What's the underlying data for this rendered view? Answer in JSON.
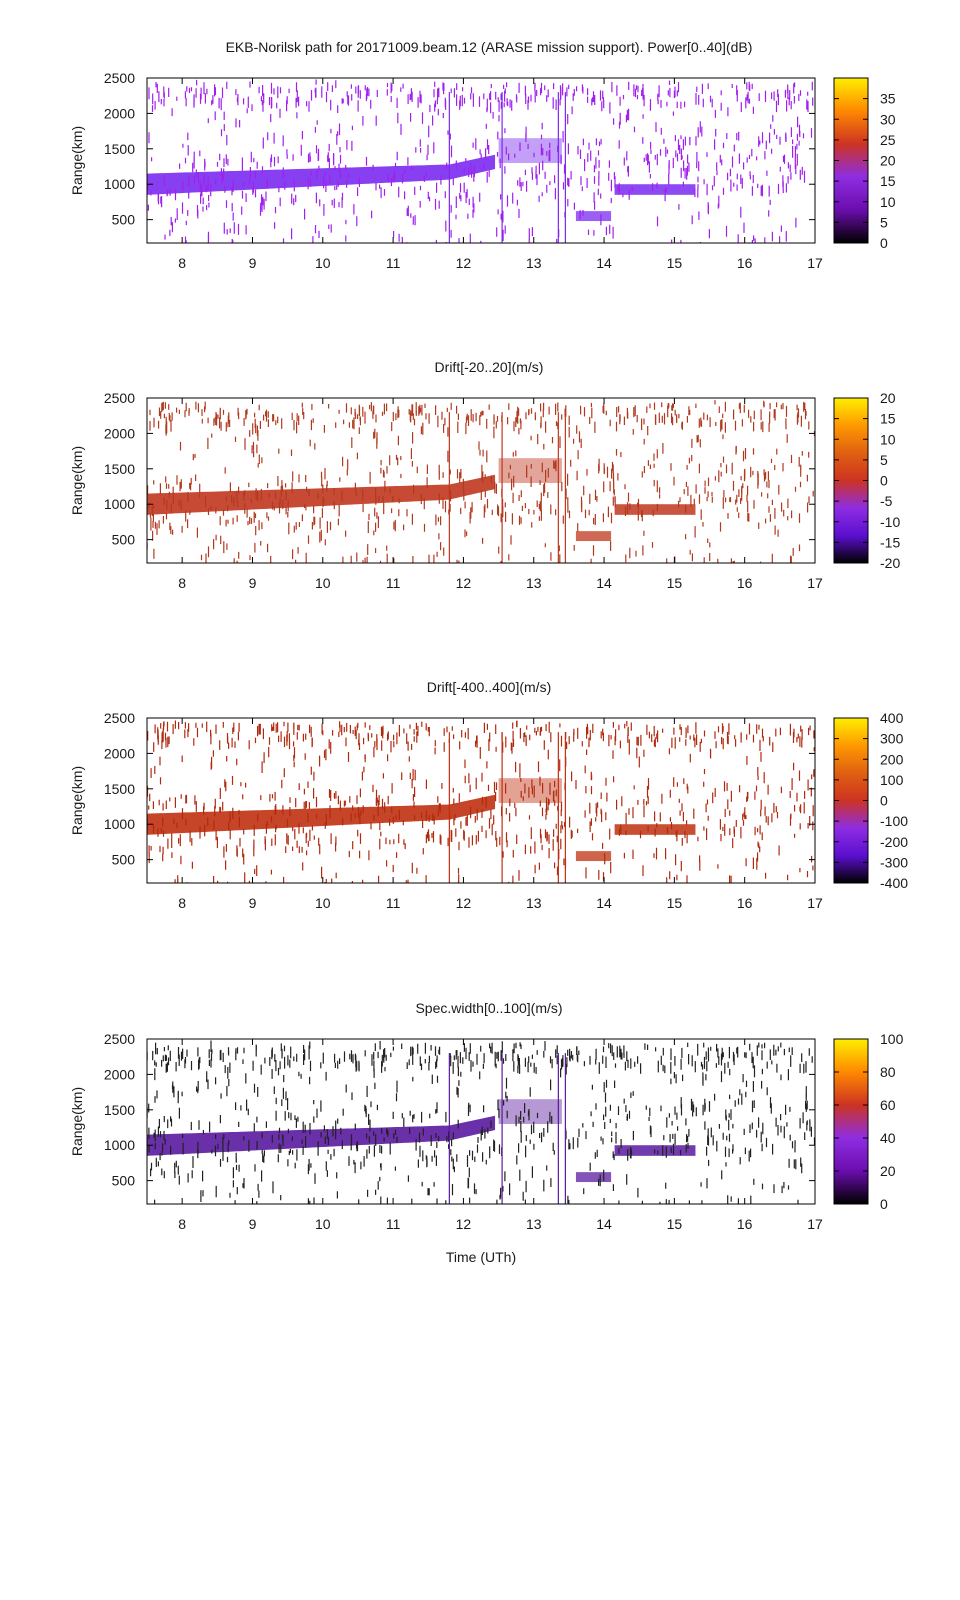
{
  "figure": {
    "xlabel": "Time (UTh)"
  },
  "chart_data": [
    {
      "type": "heatmap",
      "title": "EKB-Norilsk path for 20171009.beam.12 (ARASE mission support). Power[0..40](dB)",
      "ylabel": "Range(km)",
      "xlabel": "",
      "xlim": [
        7.5,
        17
      ],
      "ylim": [
        170,
        2500
      ],
      "x_ticks": [
        "8",
        "9",
        "10",
        "11",
        "12",
        "13",
        "14",
        "15",
        "16",
        "17"
      ],
      "y_ticks": [
        "500",
        "1000",
        "1500",
        "2000",
        "2500"
      ],
      "colorbar": {
        "range": [
          0,
          40
        ],
        "ticks": [
          "0",
          "5",
          "10",
          "15",
          "20",
          "25",
          "30",
          "35"
        ],
        "colors": [
          "#000000",
          "#6a0dad",
          "#8e2de2",
          "#cc3322",
          "#ff8800",
          "#ffee00"
        ]
      },
      "scatter_color": "#a020f0",
      "band_color": "#7a2af0",
      "grid": false
    },
    {
      "type": "heatmap",
      "title": "Drift[-20..20](m/s)",
      "ylabel": "Range(km)",
      "xlabel": "",
      "xlim": [
        7.5,
        17
      ],
      "ylim": [
        170,
        2500
      ],
      "x_ticks": [
        "8",
        "9",
        "10",
        "11",
        "12",
        "13",
        "14",
        "15",
        "16",
        "17"
      ],
      "y_ticks": [
        "500",
        "1000",
        "1500",
        "2000",
        "2500"
      ],
      "colorbar": {
        "range": [
          -20,
          20
        ],
        "ticks": [
          "-20",
          "-15",
          "-10",
          "-5",
          "0",
          "5",
          "10",
          "15",
          "20"
        ],
        "colors": [
          "#000000",
          "#5b0fd0",
          "#8e2de2",
          "#cc3322",
          "#e06010",
          "#ff9900",
          "#ffee00"
        ]
      },
      "scatter_color": "#b03a20",
      "band_color": "#c0361e",
      "grid": false
    },
    {
      "type": "heatmap",
      "title": "Drift[-400..400](m/s)",
      "ylabel": "Range(km)",
      "xlabel": "",
      "xlim": [
        7.5,
        17
      ],
      "ylim": [
        170,
        2500
      ],
      "x_ticks": [
        "8",
        "9",
        "10",
        "11",
        "12",
        "13",
        "14",
        "15",
        "16",
        "17"
      ],
      "y_ticks": [
        "500",
        "1000",
        "1500",
        "2000",
        "2500"
      ],
      "colorbar": {
        "range": [
          -400,
          400
        ],
        "ticks": [
          "-400",
          "-300",
          "-200",
          "-100",
          "0",
          "100",
          "200",
          "300",
          "400"
        ],
        "colors": [
          "#000000",
          "#5b0fd0",
          "#8e2de2",
          "#cc3322",
          "#e06010",
          "#ff9900",
          "#ffee00"
        ]
      },
      "scatter_color": "#b02a10",
      "band_color": "#c0300f",
      "grid": false
    },
    {
      "type": "heatmap",
      "title": "Spec.width[0..100](m/s)",
      "ylabel": "Range(km)",
      "xlabel": "Time (UTh)",
      "xlim": [
        7.5,
        17
      ],
      "ylim": [
        170,
        2500
      ],
      "x_ticks": [
        "8",
        "9",
        "10",
        "11",
        "12",
        "13",
        "14",
        "15",
        "16",
        "17"
      ],
      "y_ticks": [
        "500",
        "1000",
        "1500",
        "2000",
        "2500"
      ],
      "colorbar": {
        "range": [
          0,
          100
        ],
        "ticks": [
          "0",
          "20",
          "40",
          "60",
          "80",
          "100"
        ],
        "colors": [
          "#000000",
          "#6a0dad",
          "#8e2de2",
          "#cc3322",
          "#ff8800",
          "#ffee00"
        ]
      },
      "scatter_color": "#222222",
      "band_color": "#5a1aa0",
      "grid": false
    }
  ]
}
